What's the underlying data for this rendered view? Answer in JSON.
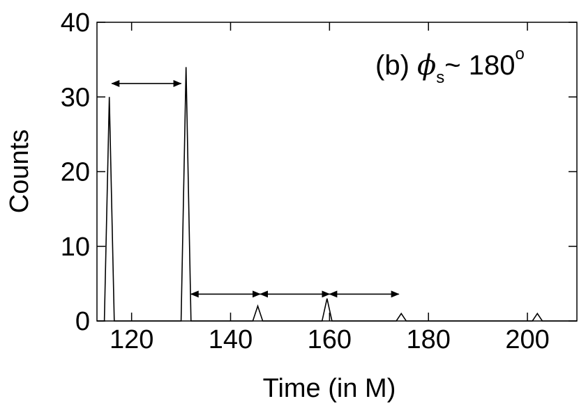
{
  "chart_data": {
    "type": "line",
    "title": "",
    "xlabel": "Time (in M)",
    "ylabel": "Counts",
    "xlim": [
      113,
      210
    ],
    "ylim": [
      0,
      40
    ],
    "x_ticks": [
      120,
      140,
      160,
      180,
      200
    ],
    "y_ticks": [
      0,
      10,
      20,
      30,
      40
    ],
    "grid": false,
    "series": [
      {
        "x": [
          114.5,
          115.5,
          116.5,
          130,
          131,
          132,
          144.5,
          145.5,
          146.5,
          158.5,
          159.5,
          160.5,
          173.5,
          174.5,
          175.5,
          201,
          202,
          203
        ],
        "y": [
          0,
          30,
          0,
          0,
          34,
          0,
          0,
          2,
          0,
          0,
          3,
          0,
          0,
          1,
          0,
          0,
          1,
          0
        ]
      }
    ],
    "arrows": [
      {
        "x_start": 116,
        "x_end": 130,
        "y": 31.8
      },
      {
        "x_start": 132,
        "x_end": 146,
        "y": 3.6
      },
      {
        "x_start": 146,
        "x_end": 160,
        "y": 3.6
      },
      {
        "x_start": 160,
        "x_end": 174,
        "y": 3.6
      }
    ],
    "annotation": {
      "prefix": "(b) ",
      "symbol": "ϕ",
      "subscript": "s",
      "suffix": "~ 180",
      "superscript": "o",
      "position": "top-right"
    }
  }
}
